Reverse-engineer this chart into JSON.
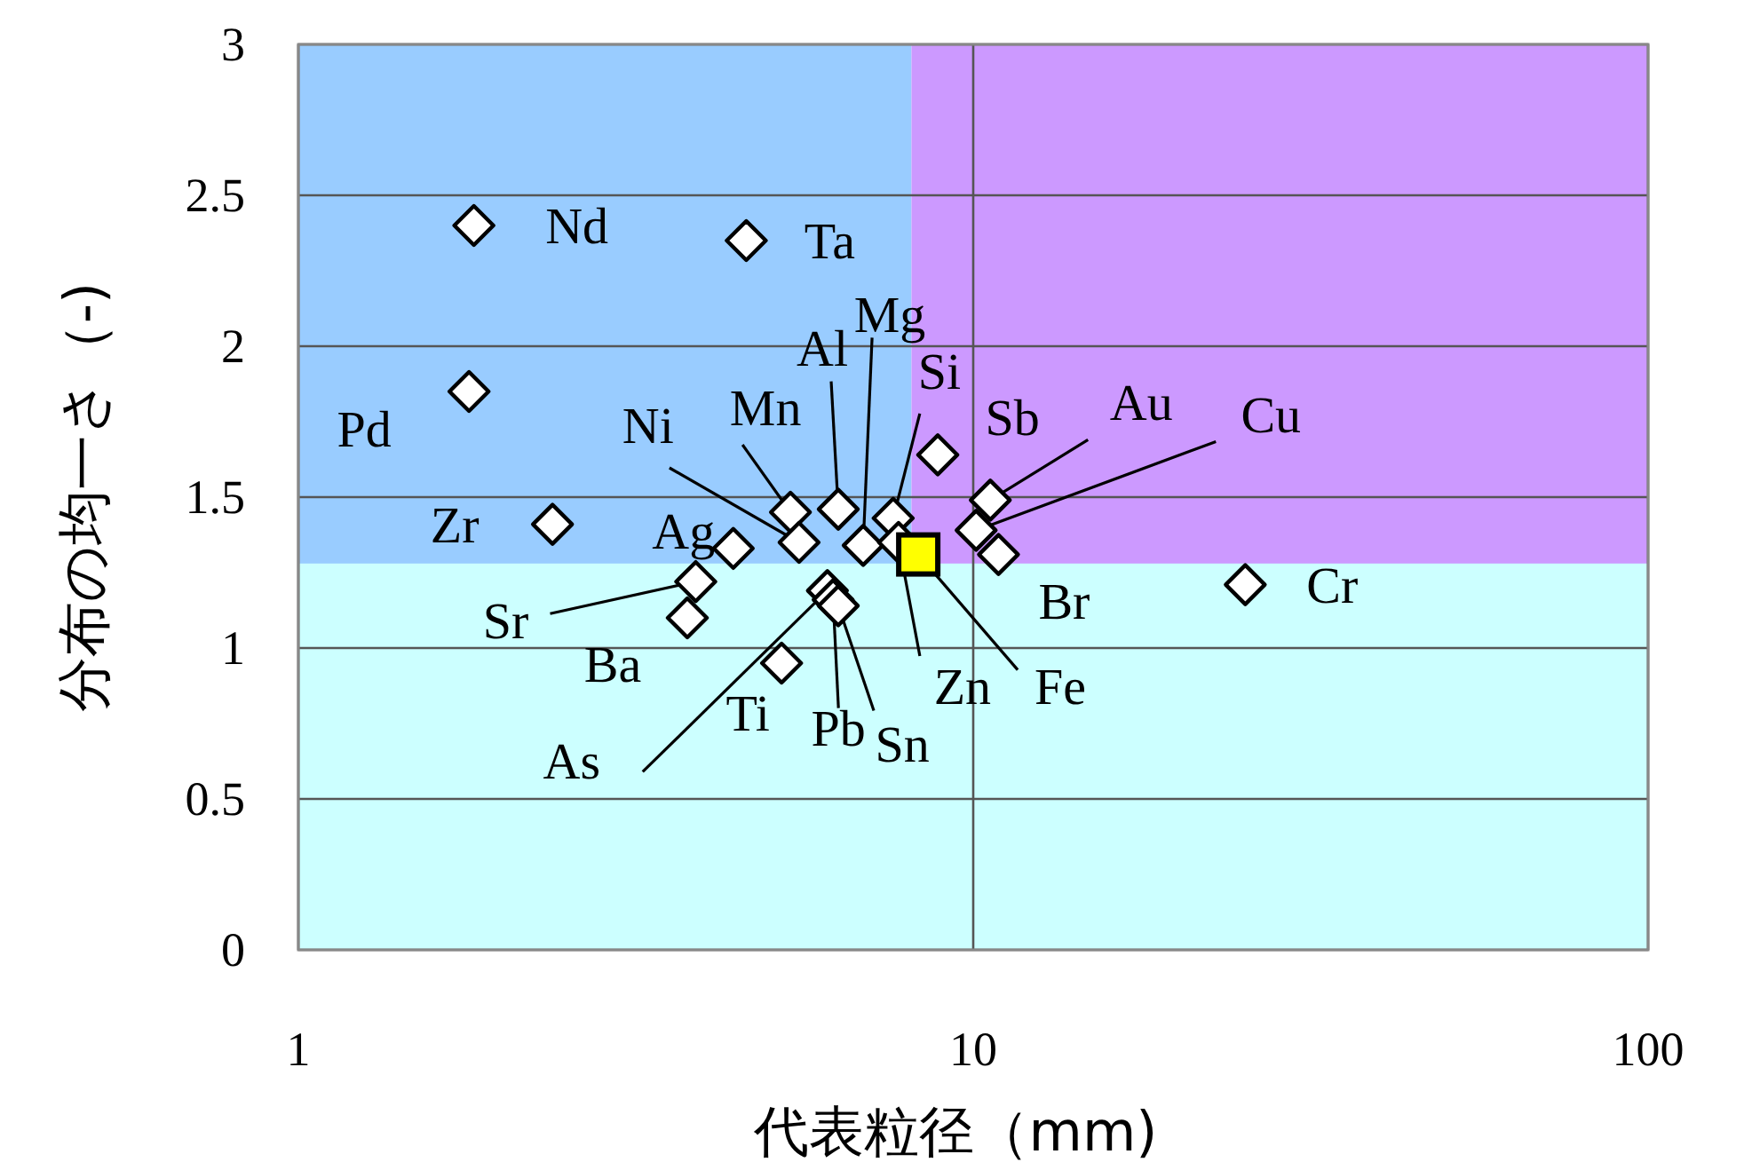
{
  "chart_data": {
    "type": "scatter",
    "xlabel": "代表粒径（mm)",
    "ylabel": "分布の均一さ（-)",
    "log": "x",
    "xlim": [
      1,
      100
    ],
    "ylim": [
      0,
      3
    ],
    "xticks": [
      1,
      10,
      100
    ],
    "yticks": [
      0,
      0.5,
      1,
      1.5,
      2,
      2.5,
      3
    ],
    "grid": true,
    "marker": "diamond",
    "bands": [
      {
        "axis": "x",
        "from": 1,
        "to": 8.1,
        "color": "#99ccff"
      },
      {
        "axis": "x",
        "from": 8.1,
        "to": 100,
        "color": "#cc99ff"
      },
      {
        "axis": "y",
        "from": 0,
        "to": 1.28,
        "color": "#ccffff"
      }
    ],
    "series": [
      {
        "color": "#ffffff",
        "x": [
          1.82,
          4.61,
          1.79,
          2.38,
          4.41,
          3.88,
          3.77,
          5.2,
          5.36,
          5.52,
          6.31,
          6.87,
          7.61,
          6.08,
          6.2,
          6.31,
          7.75,
          8.86,
          10.6,
          10.1,
          10.9,
          25.3
        ],
        "values": [
          2.4,
          2.35,
          1.85,
          1.41,
          1.33,
          1.22,
          1.1,
          0.95,
          1.45,
          1.35,
          1.46,
          1.34,
          1.43,
          1.19,
          1.16,
          1.14,
          1.35,
          1.64,
          1.49,
          1.39,
          1.31,
          1.21
        ],
        "value_labels": [
          "Nd",
          "Ta",
          "Pd",
          "Zr",
          "Ag",
          "Sr",
          "Ba",
          "Ti",
          "Mn",
          "Ni",
          "Al",
          "Mg",
          "Si",
          "As",
          "Pb",
          "Sn",
          "Zn",
          "Sb",
          "Au",
          "Cu",
          "Br",
          "Cr"
        ]
      },
      {
        "color": "#ffff00",
        "marker": "square",
        "x": [
          8.29
        ],
        "values": [
          1.31
        ],
        "value_labels": [
          "Fe"
        ]
      }
    ]
  }
}
